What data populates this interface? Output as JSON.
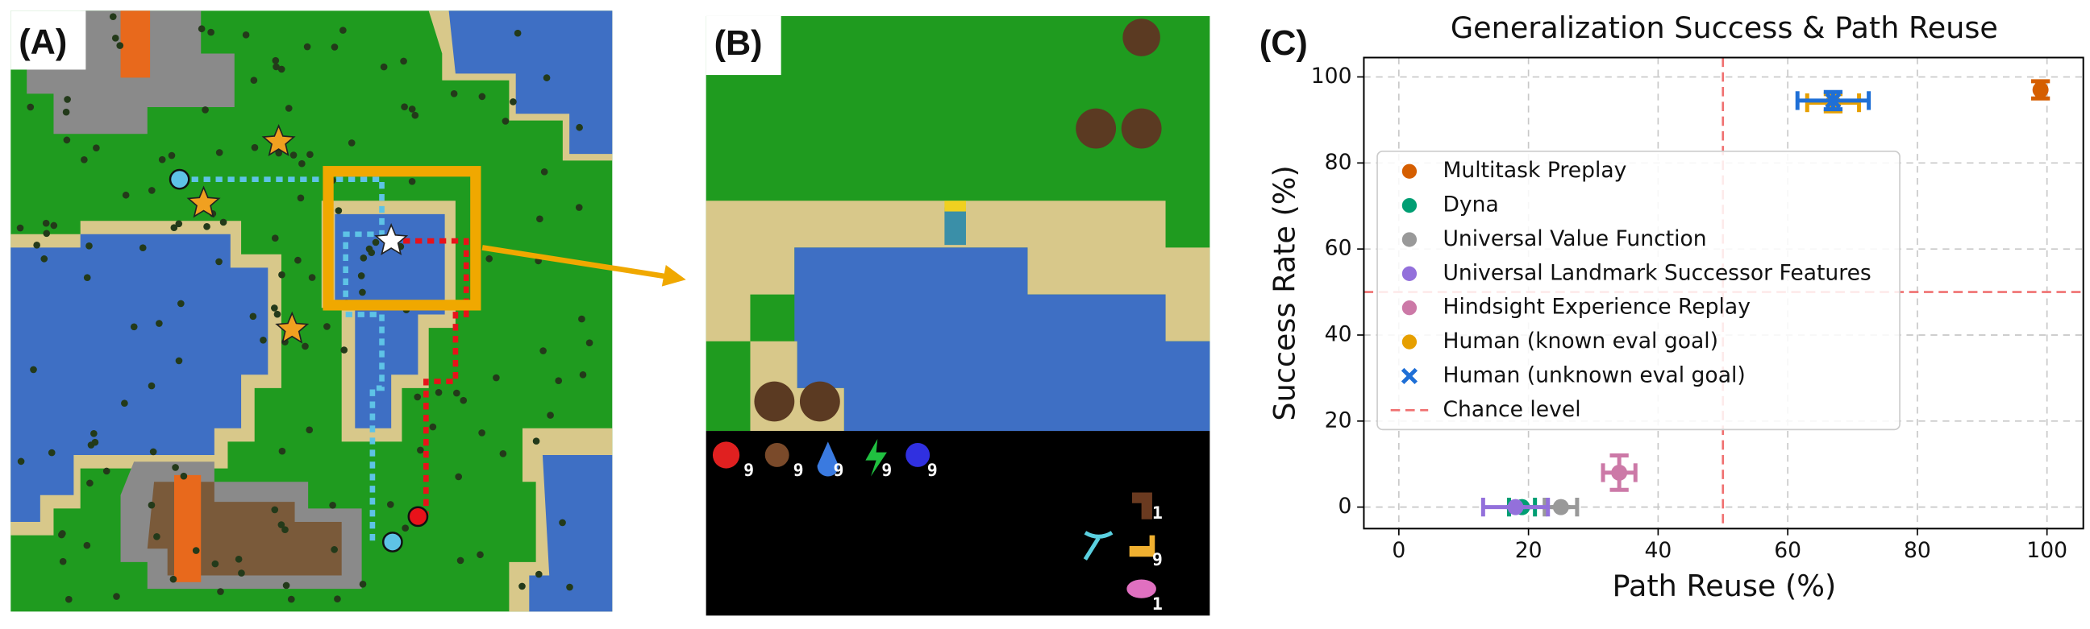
{
  "panel_a": {
    "label": "(A)"
  },
  "panel_b": {
    "label": "(B)",
    "hud": {
      "stats": [
        9,
        9,
        9,
        9,
        9
      ],
      "items": [
        1,
        9,
        1
      ]
    }
  },
  "chart_data": {
    "type": "scatter",
    "label": "(C)",
    "title": "Generalization Success & Path Reuse",
    "x_label": "Path Reuse (%)",
    "y_label": "Success Rate (%)",
    "xlim": [
      -5.4,
      105.6
    ],
    "ylim": [
      -5,
      104.5
    ],
    "xticks": [
      0,
      20,
      40,
      60,
      80,
      100
    ],
    "yticks": [
      0,
      20,
      40,
      60,
      80,
      100
    ],
    "grid": true,
    "legend": "center-left",
    "series": [
      {
        "name": "Multitask Preplay",
        "color": "#d55e00",
        "marker": "o",
        "x": [
          99
        ],
        "values": [
          97
        ],
        "x_err": [
          0.5
        ],
        "y_err": [
          2
        ]
      },
      {
        "name": "Dyna",
        "color": "#009e73",
        "marker": "o",
        "x": [
          19
        ],
        "values": [
          0
        ],
        "x_err": [
          2
        ],
        "y_err": [
          0
        ]
      },
      {
        "name": "Universal Value Function",
        "color": "#999999",
        "marker": "o",
        "x": [
          25
        ],
        "values": [
          0
        ],
        "x_err": [
          2.5
        ],
        "y_err": [
          0
        ]
      },
      {
        "name": "Universal Landmark Successor Features",
        "color": "#9370db",
        "marker": "o",
        "x": [
          18
        ],
        "values": [
          0
        ],
        "x_err": [
          5
        ],
        "y_err": [
          0
        ]
      },
      {
        "name": "Hindsight Experience Replay",
        "color": "#cc79a7",
        "marker": "o",
        "x": [
          34
        ],
        "values": [
          8
        ],
        "x_err": [
          2.5
        ],
        "y_err": [
          4
        ]
      },
      {
        "name": "Human (known eval goal)",
        "color": "#e69f00",
        "marker": "o",
        "x": [
          67
        ],
        "values": [
          94
        ],
        "x_err": [
          4
        ],
        "y_err": [
          2
        ]
      },
      {
        "name": "Human (unknown eval goal)",
        "color": "#1f6fd6",
        "marker": "x",
        "x": [
          67
        ],
        "values": [
          94.5
        ],
        "x_err": [
          5.5
        ],
        "y_err": [
          2
        ]
      }
    ],
    "reference": {
      "name": "Chance level",
      "color": "#f07070",
      "x": 50,
      "y": 50
    }
  }
}
